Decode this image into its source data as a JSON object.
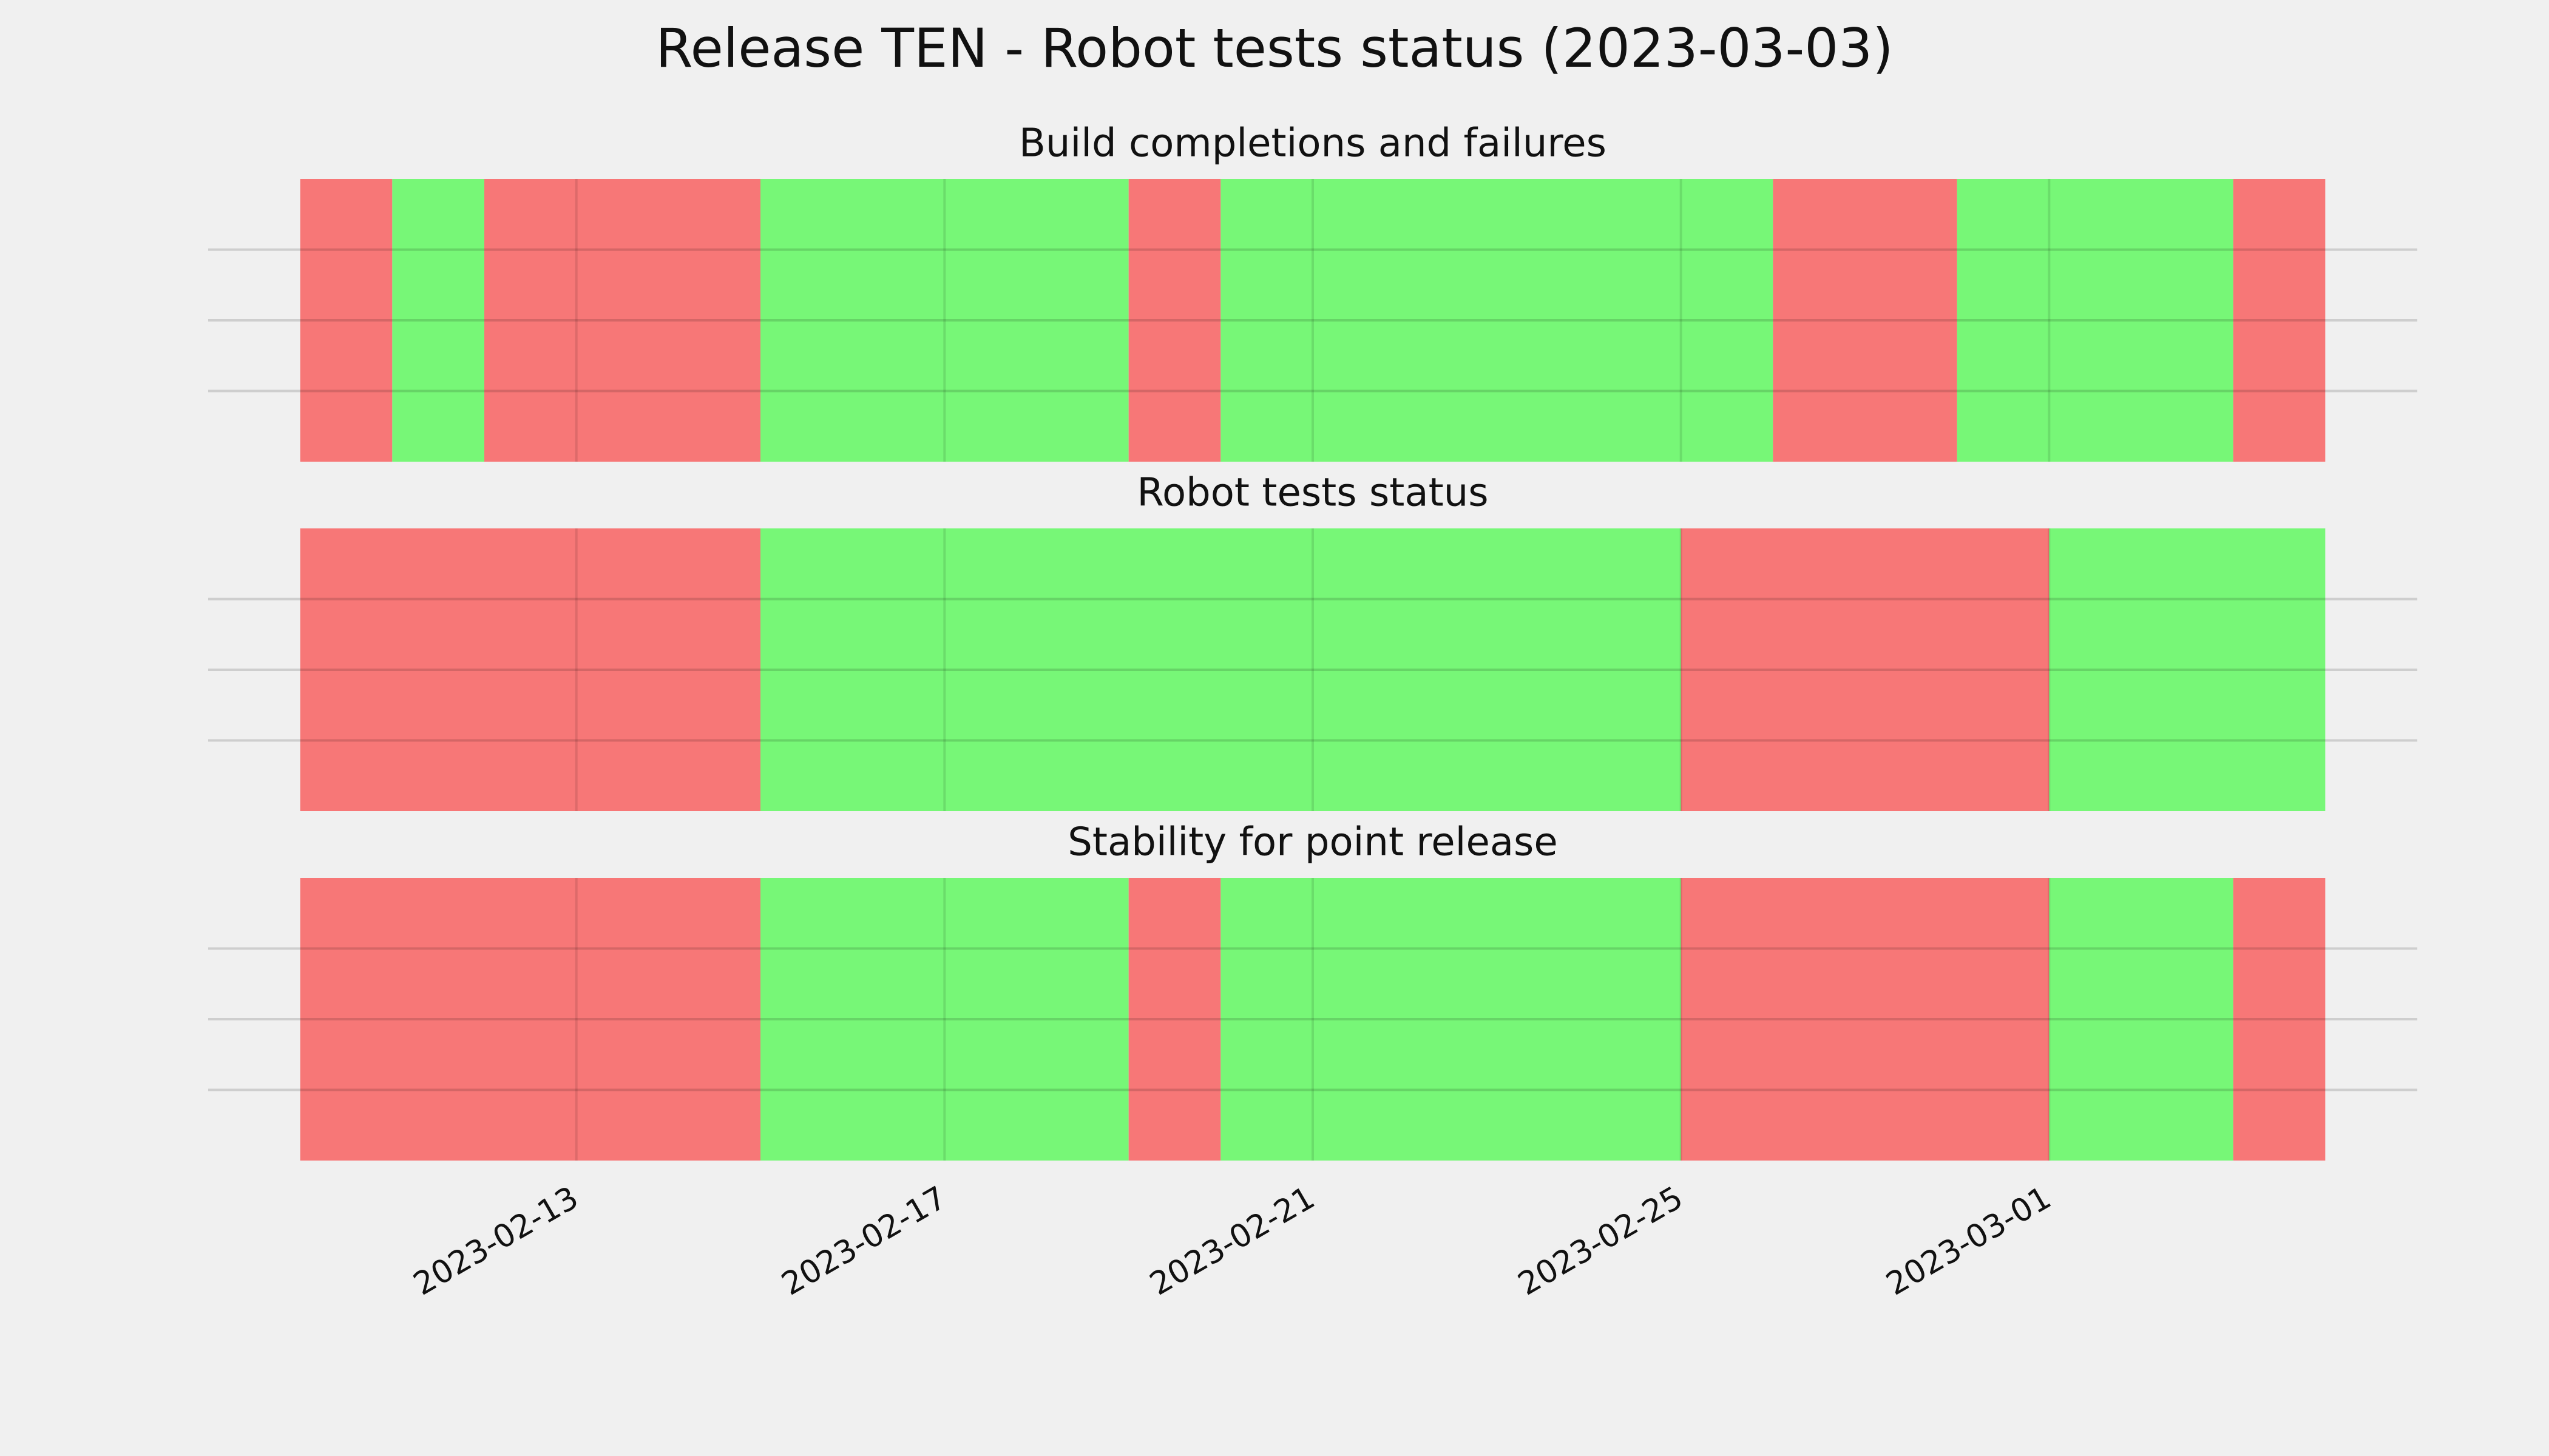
{
  "title": "Release TEN - Robot tests status (2023-03-03)",
  "chart_data": [
    {
      "type": "timeline",
      "title": "Build completions and failures",
      "segments": [
        {
          "start": "2023-02-10",
          "end": "2023-02-11",
          "color": "#f77777"
        },
        {
          "start": "2023-02-11",
          "end": "2023-02-12",
          "color": "#77f777"
        },
        {
          "start": "2023-02-12",
          "end": "2023-02-15",
          "color": "#f77777"
        },
        {
          "start": "2023-02-15",
          "end": "2023-02-19",
          "color": "#77f777"
        },
        {
          "start": "2023-02-19",
          "end": "2023-02-20",
          "color": "#f77777"
        },
        {
          "start": "2023-02-20",
          "end": "2023-02-26",
          "color": "#77f777"
        },
        {
          "start": "2023-02-26",
          "end": "2023-02-28",
          "color": "#f77777"
        },
        {
          "start": "2023-02-28",
          "end": "2023-03-03",
          "color": "#77f777"
        },
        {
          "start": "2023-03-03",
          "end": "2023-03-04",
          "color": "#f77777"
        }
      ],
      "xlim": [
        "2023-02-09",
        "2023-03-05"
      ],
      "xticks": [
        "2023-02-13",
        "2023-02-17",
        "2023-02-21",
        "2023-02-25",
        "2023-03-01"
      ],
      "ylim": [
        0,
        1
      ],
      "yticks": [
        0.25,
        0.5,
        0.75
      ],
      "grid": true,
      "show_xtick_labels": false
    },
    {
      "type": "timeline",
      "title": "Robot tests status",
      "segments": [
        {
          "start": "2023-02-10",
          "end": "2023-02-15",
          "color": "#f77777"
        },
        {
          "start": "2023-02-15",
          "end": "2023-02-25",
          "color": "#77f777"
        },
        {
          "start": "2023-02-25",
          "end": "2023-03-01",
          "color": "#f77777"
        },
        {
          "start": "2023-03-01",
          "end": "2023-03-04",
          "color": "#77f777"
        }
      ],
      "xlim": [
        "2023-02-09",
        "2023-03-05"
      ],
      "xticks": [
        "2023-02-13",
        "2023-02-17",
        "2023-02-21",
        "2023-02-25",
        "2023-03-01"
      ],
      "ylim": [
        0,
        1
      ],
      "yticks": [
        0.25,
        0.5,
        0.75
      ],
      "grid": true,
      "show_xtick_labels": false
    },
    {
      "type": "timeline",
      "title": "Stability for point release",
      "segments": [
        {
          "start": "2023-02-10",
          "end": "2023-02-15",
          "color": "#f77777"
        },
        {
          "start": "2023-02-15",
          "end": "2023-02-19",
          "color": "#77f777"
        },
        {
          "start": "2023-02-19",
          "end": "2023-02-20",
          "color": "#f77777"
        },
        {
          "start": "2023-02-20",
          "end": "2023-02-25",
          "color": "#77f777"
        },
        {
          "start": "2023-02-25",
          "end": "2023-03-01",
          "color": "#f77777"
        },
        {
          "start": "2023-03-01",
          "end": "2023-03-03",
          "color": "#77f777"
        },
        {
          "start": "2023-03-03",
          "end": "2023-03-04",
          "color": "#f77777"
        }
      ],
      "xlim": [
        "2023-02-09",
        "2023-03-05"
      ],
      "xticks": [
        "2023-02-13",
        "2023-02-17",
        "2023-02-21",
        "2023-02-25",
        "2023-03-01"
      ],
      "ylim": [
        0,
        1
      ],
      "yticks": [
        0.25,
        0.5,
        0.75
      ],
      "grid": true,
      "show_xtick_labels": true
    }
  ]
}
